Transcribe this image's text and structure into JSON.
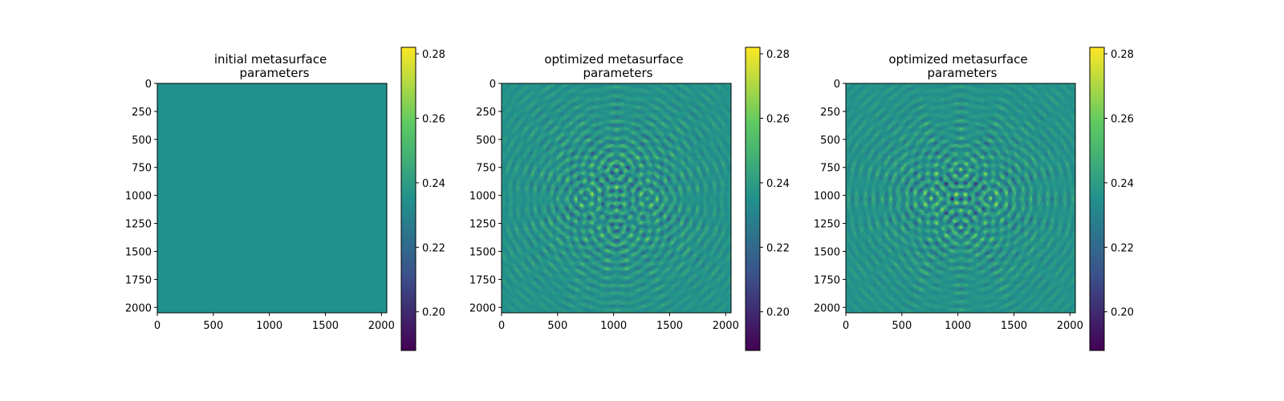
{
  "chart_data": [
    {
      "type": "heatmap",
      "title_lines": [
        "initial metasurface",
        "parameters"
      ],
      "pattern": "uniform",
      "x_ticks": [
        0,
        500,
        1000,
        1500,
        2000
      ],
      "y_ticks": [
        0,
        250,
        500,
        750,
        1000,
        1250,
        1500,
        1750,
        2000
      ],
      "xlim": [
        0,
        2048
      ],
      "ylim": [
        2048,
        0
      ],
      "colorbar": {
        "ticks": [
          0.2,
          0.22,
          0.24,
          0.26,
          0.28
        ],
        "tick_labels": [
          "0.20",
          "0.22",
          "0.24",
          "0.26",
          "0.28"
        ],
        "range": [
          0.188,
          0.282
        ]
      },
      "value_range": [
        0.188,
        0.282
      ]
    },
    {
      "type": "heatmap",
      "title_lines": [
        "optimized metasurface",
        "parameters"
      ],
      "pattern": "four-lobe interference",
      "x_ticks": [
        0,
        500,
        1000,
        1500,
        2000
      ],
      "y_ticks": [
        0,
        250,
        500,
        750,
        1000,
        1250,
        1500,
        1750,
        2000
      ],
      "xlim": [
        0,
        2048
      ],
      "ylim": [
        2048,
        0
      ],
      "colorbar": {
        "ticks": [
          0.2,
          0.22,
          0.24,
          0.26,
          0.28
        ],
        "tick_labels": [
          "0.20",
          "0.22",
          "0.24",
          "0.26",
          "0.28"
        ],
        "range": [
          0.188,
          0.282
        ]
      },
      "lobe_centers": [
        [
          1024,
          780
        ],
        [
          740,
          1024
        ],
        [
          1308,
          1024
        ],
        [
          1024,
          1290
        ]
      ],
      "value_range": [
        0.188,
        0.282
      ]
    },
    {
      "type": "heatmap",
      "title_lines": [
        "optimized metasurface",
        "parameters"
      ],
      "pattern": "four-lobe interference",
      "x_ticks": [
        0,
        500,
        1000,
        1500,
        2000
      ],
      "y_ticks": [
        0,
        250,
        500,
        750,
        1000,
        1250,
        1500,
        1750,
        2000
      ],
      "xlim": [
        0,
        2048
      ],
      "ylim": [
        2048,
        0
      ],
      "colorbar": {
        "ticks": [
          0.2,
          0.22,
          0.24,
          0.26,
          0.28
        ],
        "tick_labels": [
          "0.20",
          "0.22",
          "0.24",
          "0.26",
          "0.28"
        ],
        "range": [
          0.188,
          0.282
        ]
      },
      "lobe_centers": [
        [
          1024,
          780
        ],
        [
          760,
          1024
        ],
        [
          1290,
          1024
        ],
        [
          1024,
          1280
        ]
      ],
      "value_range": [
        0.188,
        0.282
      ]
    }
  ],
  "colors": {
    "uniform_fill": "#21918c",
    "viridis_stops": [
      "#440154",
      "#3b528b",
      "#21918c",
      "#5ec962",
      "#fde725"
    ]
  }
}
